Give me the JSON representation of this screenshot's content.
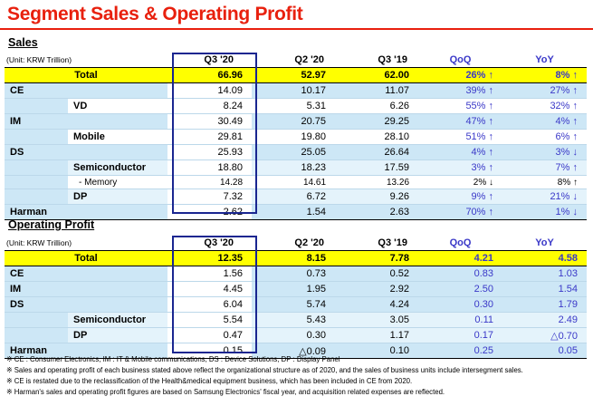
{
  "title": "Segment Sales & Operating Profit",
  "sales": {
    "heading": "Sales",
    "unit": "(Unit: KRW Trillion)",
    "columns": [
      "Q3 '20",
      "Q2 '20",
      "Q3 '19",
      "QoQ",
      "YoY"
    ],
    "rows": [
      {
        "label": "Total",
        "values": [
          "66.96",
          "52.97",
          "62.00",
          "26% ↑",
          "8% ↑"
        ]
      },
      {
        "label": "CE",
        "values": [
          "14.09",
          "10.17",
          "11.07",
          "39% ↑",
          "27% ↑"
        ]
      },
      {
        "label": "VD",
        "values": [
          "8.24",
          "5.31",
          "6.26",
          "55% ↑",
          "32% ↑"
        ]
      },
      {
        "label": "IM",
        "values": [
          "30.49",
          "20.75",
          "29.25",
          "47% ↑",
          "4% ↑"
        ]
      },
      {
        "label": "Mobile",
        "values": [
          "29.81",
          "19.80",
          "28.10",
          "51% ↑",
          "6% ↑"
        ]
      },
      {
        "label": "DS",
        "values": [
          "25.93",
          "25.05",
          "26.64",
          "4% ↑",
          "3% ↓"
        ]
      },
      {
        "label": "Semiconductor",
        "values": [
          "18.80",
          "18.23",
          "17.59",
          "3% ↑",
          "7% ↑"
        ]
      },
      {
        "label": "- Memory",
        "values": [
          "14.28",
          "14.61",
          "13.26",
          "2% ↓",
          "8% ↑"
        ]
      },
      {
        "label": "DP",
        "values": [
          "7.32",
          "6.72",
          "9.26",
          "9% ↑",
          "21% ↓"
        ]
      },
      {
        "label": "Harman",
        "values": [
          "2.62",
          "1.54",
          "2.63",
          "70% ↑",
          "1% ↓"
        ]
      }
    ]
  },
  "op": {
    "heading": "Operating Profit",
    "unit": "(Unit: KRW Trillion)",
    "columns": [
      "Q3 '20",
      "Q2 '20",
      "Q3 '19",
      "QoQ",
      "YoY"
    ],
    "rows": [
      {
        "label": "Total",
        "values": [
          "12.35",
          "8.15",
          "7.78",
          "4.21",
          "4.58"
        ]
      },
      {
        "label": "CE",
        "values": [
          "1.56",
          "0.73",
          "0.52",
          "0.83",
          "1.03"
        ]
      },
      {
        "label": "IM",
        "values": [
          "4.45",
          "1.95",
          "2.92",
          "2.50",
          "1.54"
        ]
      },
      {
        "label": "DS",
        "values": [
          "6.04",
          "5.74",
          "4.24",
          "0.30",
          "1.79"
        ]
      },
      {
        "label": "Semiconductor",
        "values": [
          "5.54",
          "5.43",
          "3.05",
          "0.11",
          "2.49"
        ]
      },
      {
        "label": "DP",
        "values": [
          "0.47",
          "0.30",
          "1.17",
          "0.17",
          "△0.70"
        ]
      },
      {
        "label": "Harman",
        "values": [
          "0.15",
          "△0.09",
          "0.10",
          "0.25",
          "0.05"
        ]
      }
    ]
  },
  "notes": [
    "※ CE : Consumer Electronics,  IM : IT & Mobile communications,  DS : Device Solutions,  DP : Display Panel",
    "※ Sales and operating profit of each business stated above reflect the organizational structure  as of 2020, and the sales of business units include intersegment sales.",
    "※ CE is restated due to the reclassification of the Health&medical equipment business, which has been included in CE from 2020.",
    "※ Harman's sales and operating profit figures are based on Samsung Electronics' fiscal year, and acquisition related expenses are reflected."
  ]
}
